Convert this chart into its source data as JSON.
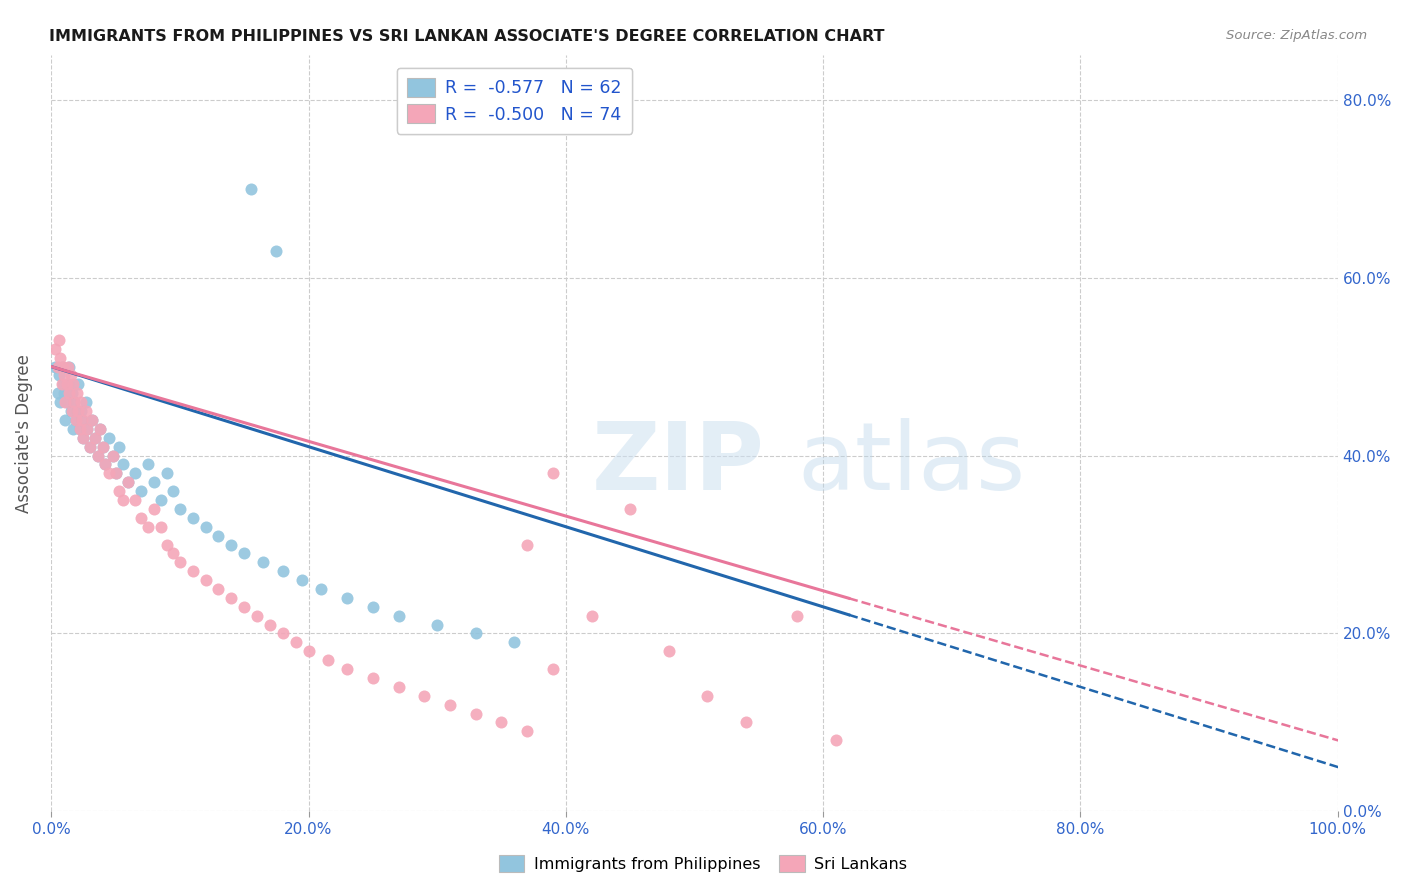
{
  "title": "IMMIGRANTS FROM PHILIPPINES VS SRI LANKAN ASSOCIATE'S DEGREE CORRELATION CHART",
  "source": "Source: ZipAtlas.com",
  "ylabel": "Associate's Degree",
  "xlim": [
    0.0,
    1.0
  ],
  "ylim": [
    0.0,
    0.85
  ],
  "x_ticks": [
    0.0,
    0.2,
    0.4,
    0.6,
    0.8,
    1.0
  ],
  "x_tick_labels": [
    "0.0%",
    "20.0%",
    "40.0%",
    "60.0%",
    "80.0%",
    "100.0%"
  ],
  "y_ticks_right": [
    0.0,
    0.2,
    0.4,
    0.6,
    0.8
  ],
  "y_tick_labels_right": [
    "0.0%",
    "20.0%",
    "40.0%",
    "60.0%",
    "80.0%"
  ],
  "legend_r1": "R =  -0.577   N = 62",
  "legend_r2": "R =  -0.500   N = 74",
  "blue_color": "#92c5de",
  "pink_color": "#f4a6b8",
  "line_blue": "#2166ac",
  "line_pink": "#e8769a",
  "philippines_x": [
    0.003,
    0.005,
    0.006,
    0.007,
    0.008,
    0.009,
    0.01,
    0.011,
    0.012,
    0.013,
    0.014,
    0.015,
    0.016,
    0.017,
    0.018,
    0.019,
    0.02,
    0.021,
    0.022,
    0.023,
    0.024,
    0.025,
    0.027,
    0.028,
    0.03,
    0.032,
    0.034,
    0.036,
    0.038,
    0.04,
    0.042,
    0.045,
    0.048,
    0.05,
    0.053,
    0.056,
    0.06,
    0.065,
    0.07,
    0.075,
    0.08,
    0.085,
    0.09,
    0.095,
    0.1,
    0.11,
    0.12,
    0.13,
    0.14,
    0.15,
    0.165,
    0.18,
    0.195,
    0.21,
    0.23,
    0.25,
    0.27,
    0.3,
    0.33,
    0.36,
    0.155,
    0.175
  ],
  "philippines_y": [
    0.5,
    0.47,
    0.49,
    0.46,
    0.5,
    0.48,
    0.47,
    0.44,
    0.46,
    0.48,
    0.5,
    0.45,
    0.47,
    0.43,
    0.46,
    0.44,
    0.45,
    0.48,
    0.43,
    0.45,
    0.44,
    0.42,
    0.46,
    0.43,
    0.41,
    0.44,
    0.42,
    0.4,
    0.43,
    0.41,
    0.39,
    0.42,
    0.4,
    0.38,
    0.41,
    0.39,
    0.37,
    0.38,
    0.36,
    0.39,
    0.37,
    0.35,
    0.38,
    0.36,
    0.34,
    0.33,
    0.32,
    0.31,
    0.3,
    0.29,
    0.28,
    0.27,
    0.26,
    0.25,
    0.24,
    0.23,
    0.22,
    0.21,
    0.2,
    0.19,
    0.7,
    0.63
  ],
  "srilanka_x": [
    0.003,
    0.005,
    0.006,
    0.007,
    0.008,
    0.009,
    0.01,
    0.011,
    0.012,
    0.013,
    0.014,
    0.015,
    0.016,
    0.017,
    0.018,
    0.019,
    0.02,
    0.021,
    0.022,
    0.023,
    0.024,
    0.025,
    0.027,
    0.028,
    0.03,
    0.032,
    0.034,
    0.036,
    0.038,
    0.04,
    0.042,
    0.045,
    0.048,
    0.05,
    0.053,
    0.056,
    0.06,
    0.065,
    0.07,
    0.075,
    0.08,
    0.085,
    0.09,
    0.095,
    0.1,
    0.11,
    0.12,
    0.13,
    0.14,
    0.15,
    0.16,
    0.17,
    0.18,
    0.19,
    0.2,
    0.215,
    0.23,
    0.25,
    0.27,
    0.29,
    0.31,
    0.33,
    0.35,
    0.37,
    0.39,
    0.42,
    0.45,
    0.48,
    0.51,
    0.54,
    0.37,
    0.39,
    0.58,
    0.61
  ],
  "srilanka_y": [
    0.52,
    0.5,
    0.53,
    0.51,
    0.48,
    0.5,
    0.49,
    0.46,
    0.48,
    0.5,
    0.47,
    0.49,
    0.45,
    0.48,
    0.46,
    0.44,
    0.47,
    0.45,
    0.43,
    0.46,
    0.44,
    0.42,
    0.45,
    0.43,
    0.41,
    0.44,
    0.42,
    0.4,
    0.43,
    0.41,
    0.39,
    0.38,
    0.4,
    0.38,
    0.36,
    0.35,
    0.37,
    0.35,
    0.33,
    0.32,
    0.34,
    0.32,
    0.3,
    0.29,
    0.28,
    0.27,
    0.26,
    0.25,
    0.24,
    0.23,
    0.22,
    0.21,
    0.2,
    0.19,
    0.18,
    0.17,
    0.16,
    0.15,
    0.14,
    0.13,
    0.12,
    0.11,
    0.1,
    0.09,
    0.38,
    0.22,
    0.34,
    0.18,
    0.13,
    0.1,
    0.3,
    0.16,
    0.22,
    0.08
  ]
}
